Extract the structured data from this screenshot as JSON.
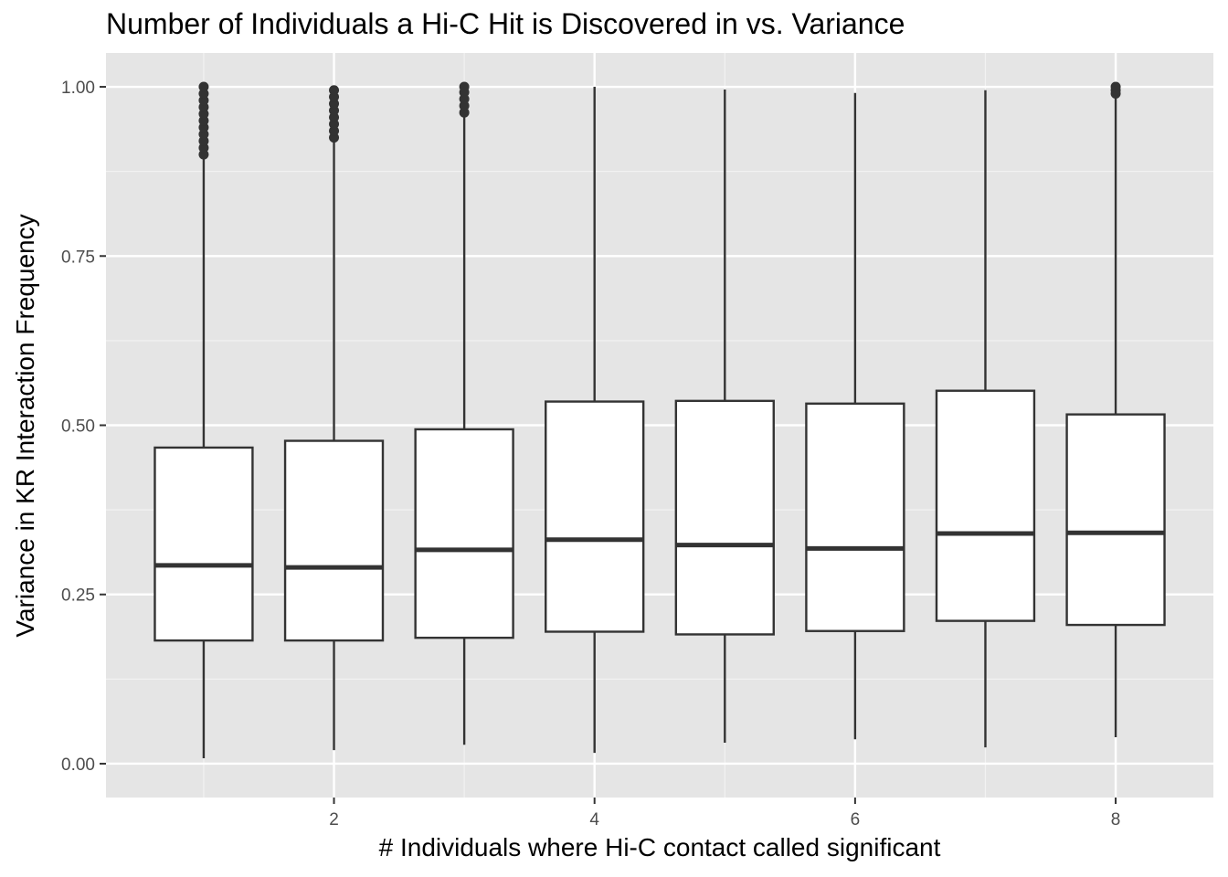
{
  "chart_data": {
    "type": "box",
    "title": "Number of Individuals a Hi-C Hit is Discovered in vs. Variance",
    "xlabel": "# Individuals where Hi-C contact called significant",
    "ylabel": "Variance in KR Interaction Frequency",
    "xlim": [
      0.25,
      8.75
    ],
    "ylim": [
      -0.05,
      1.05
    ],
    "x_ticks": [
      2,
      4,
      6,
      8
    ],
    "x_tick_labels": [
      "2",
      "4",
      "6",
      "8"
    ],
    "y_ticks": [
      0.0,
      0.25,
      0.5,
      0.75,
      1.0
    ],
    "y_tick_labels": [
      "0.00",
      "0.25",
      "0.50",
      "0.75",
      "1.00"
    ],
    "grid": true,
    "box_width": 0.75,
    "boxes": [
      {
        "x": 1,
        "whisker_low": 0.008,
        "q1": 0.182,
        "median": 0.293,
        "q3": 0.467,
        "whisker_high": 0.895,
        "outliers": [
          0.9,
          0.91,
          0.92,
          0.93,
          0.94,
          0.95,
          0.96,
          0.97,
          0.98,
          0.99,
          1.0
        ]
      },
      {
        "x": 2,
        "whisker_low": 0.02,
        "q1": 0.182,
        "median": 0.29,
        "q3": 0.477,
        "whisker_high": 0.92,
        "outliers": [
          0.925,
          0.935,
          0.945,
          0.955,
          0.965,
          0.975,
          0.985,
          0.995
        ]
      },
      {
        "x": 3,
        "whisker_low": 0.028,
        "q1": 0.186,
        "median": 0.316,
        "q3": 0.494,
        "whisker_high": 0.958,
        "outliers": [
          0.962,
          0.972,
          0.982,
          0.992,
          1.0
        ]
      },
      {
        "x": 4,
        "whisker_low": 0.016,
        "q1": 0.195,
        "median": 0.331,
        "q3": 0.535,
        "whisker_high": 1.0,
        "outliers": []
      },
      {
        "x": 5,
        "whisker_low": 0.031,
        "q1": 0.191,
        "median": 0.323,
        "q3": 0.536,
        "whisker_high": 0.996,
        "outliers": []
      },
      {
        "x": 6,
        "whisker_low": 0.036,
        "q1": 0.196,
        "median": 0.318,
        "q3": 0.532,
        "whisker_high": 0.991,
        "outliers": []
      },
      {
        "x": 7,
        "whisker_low": 0.024,
        "q1": 0.211,
        "median": 0.34,
        "q3": 0.551,
        "whisker_high": 0.995,
        "outliers": []
      },
      {
        "x": 8,
        "whisker_low": 0.039,
        "q1": 0.205,
        "median": 0.341,
        "q3": 0.516,
        "whisker_high": 0.988,
        "outliers": [
          0.99,
          0.995,
          1.0
        ]
      }
    ],
    "colors": {
      "panel_background": "#e5e5e5",
      "grid_major": "#ffffff",
      "grid_minor": "#f2f2f2",
      "box_fill": "#ffffff",
      "box_line": "#333333",
      "axis_text": "#4d4d4d",
      "tick_mark": "#333333"
    }
  }
}
